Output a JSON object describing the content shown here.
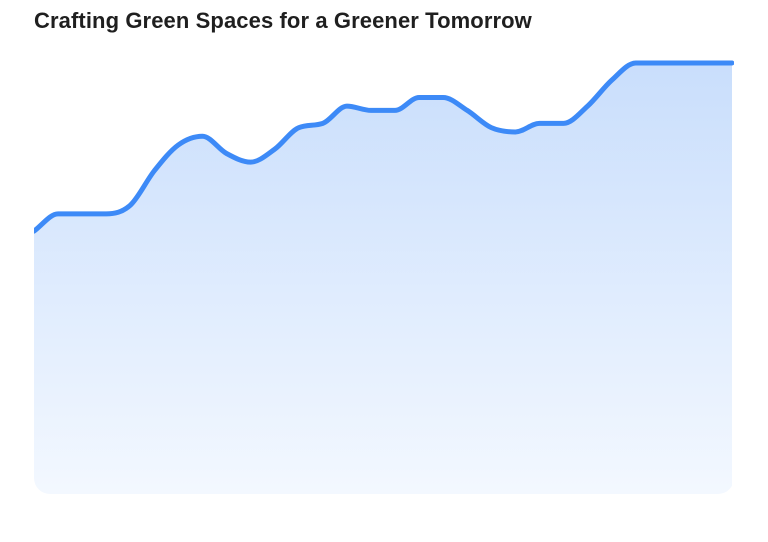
{
  "chart_data": {
    "type": "area",
    "title": "Crafting Green Spaces for a Greener Tomorrow",
    "xlabel": "",
    "ylabel": "",
    "ylim": [
      0,
      100
    ],
    "grid": false,
    "legend": "none",
    "x": [
      0,
      1,
      2,
      3,
      4,
      5,
      6,
      7,
      8,
      9,
      10,
      11,
      12,
      13,
      14,
      15,
      16,
      17,
      18,
      19,
      20,
      21,
      22,
      23,
      24,
      25,
      26,
      27,
      28,
      29
    ],
    "series": [
      {
        "values": [
          61,
          65,
          65,
          65,
          67,
          75,
          81,
          83,
          79,
          77,
          80,
          85,
          86,
          90,
          89,
          89,
          92,
          92,
          89,
          85,
          84,
          86,
          86,
          90,
          96,
          100,
          100,
          100,
          100,
          100
        ]
      }
    ],
    "colors": {
      "line": "#3d8af7",
      "fill_top": "#c9defc",
      "fill_bottom": "#f3f8ff"
    }
  }
}
